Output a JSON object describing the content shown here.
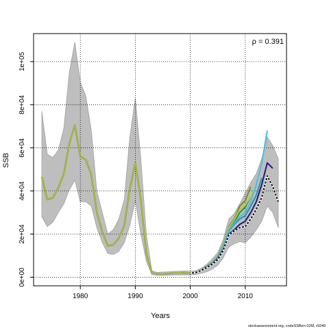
{
  "chart_data": {
    "type": "line",
    "xlabel": "Years",
    "ylabel": "SSB",
    "xlim": [
      1971.5,
      2017.5
    ],
    "ylim": [
      -4000,
      113000
    ],
    "x_ticks": [
      1980,
      1990,
      2000,
      2010
    ],
    "y_ticks": [
      0,
      20000,
      40000,
      60000,
      80000,
      100000
    ],
    "y_tick_labels": [
      "0e+00",
      "2e+04",
      "4e+04",
      "6e+04",
      "8e+04",
      "1e+05"
    ],
    "grid": true,
    "annotation": "ρ = 0.391",
    "colors": {
      "band": "#bebebe",
      "band_edge": "#a0a0a0",
      "main": "#000000",
      "peels": [
        "#1f1b7a",
        "#43bfe0",
        "#2f8fb0",
        "#b2c94a",
        "#2e8b3e",
        "#7c8f1f"
      ]
    },
    "confidence_band": {
      "x": [
        1973,
        1974,
        1975,
        1976,
        1977,
        1978,
        1979,
        1980,
        1981,
        1982,
        1983,
        1984,
        1985,
        1986,
        1987,
        1988,
        1989,
        1990,
        1991,
        1992,
        1993,
        1994,
        1995,
        1996,
        1997,
        1998,
        1999,
        2000,
        2001,
        2002,
        2003,
        2004,
        2005,
        2006,
        2007,
        2008,
        2009,
        2010,
        2011,
        2012,
        2013,
        2014,
        2015,
        2016
      ],
      "upper": [
        77000,
        57000,
        55500,
        59000,
        69000,
        95000,
        109000,
        90500,
        84000,
        68000,
        40000,
        30000,
        20000,
        22000,
        27000,
        36000,
        65000,
        83000,
        55000,
        20000,
        3000,
        2200,
        2400,
        2500,
        2700,
        2800,
        2900,
        2700,
        3000,
        4200,
        6000,
        8500,
        11500,
        17500,
        27000,
        29500,
        34000,
        39000,
        44000,
        48000,
        55000,
        65000,
        61000,
        55000
      ],
      "lower": [
        28000,
        23500,
        25500,
        30000,
        34000,
        40500,
        45000,
        35000,
        35000,
        33000,
        23000,
        16000,
        11000,
        10500,
        12000,
        16000,
        24000,
        35500,
        20000,
        7500,
        1200,
        800,
        800,
        900,
        1000,
        1000,
        1100,
        1000,
        1200,
        1800,
        2500,
        3800,
        5500,
        9000,
        14000,
        15500,
        16500,
        16000,
        18500,
        22000,
        26000,
        33000,
        30000,
        23000
      ]
    },
    "series": [
      {
        "x": [
          1973,
          1974,
          1975,
          1976,
          1977,
          1978,
          1979,
          1980,
          1981,
          1982,
          1983,
          1984,
          1985,
          1986,
          1987,
          1988,
          1989,
          1990,
          1991,
          1992,
          1993,
          1994,
          1995,
          1996,
          1997,
          1998,
          1999,
          2000,
          2001,
          2002,
          2003,
          2004,
          2005,
          2006,
          2007,
          2008,
          2009,
          2010,
          2011,
          2012,
          2013,
          2014,
          2015,
          2016
        ],
        "values": [
          46500,
          36000,
          36800,
          41500,
          48000,
          62000,
          70500,
          56000,
          54500,
          47500,
          30000,
          21000,
          14500,
          15000,
          18000,
          24000,
          41000,
          53000,
          36000,
          11000,
          2000,
          1500,
          1600,
          1700,
          1900,
          1900,
          2000,
          1800,
          2200,
          3100,
          4500,
          6000,
          8200,
          12500,
          19500,
          21500,
          23000,
          23500,
          27000,
          31500,
          37000,
          47000,
          42000,
          35000
        ]
      },
      {
        "x": [
          2000,
          2001,
          2002,
          2003,
          2004,
          2005,
          2006,
          2007,
          2008,
          2009,
          2010,
          2011,
          2012,
          2013,
          2014,
          2015
        ],
        "values": [
          1800,
          2200,
          3200,
          4700,
          6300,
          8700,
          13000,
          20000,
          22000,
          24500,
          26000,
          30000,
          35000,
          43000,
          53000,
          50500
        ]
      },
      {
        "x": [
          2000,
          2001,
          2002,
          2003,
          2004,
          2005,
          2006,
          2007,
          2008,
          2009,
          2010,
          2011,
          2012,
          2013,
          2014
        ],
        "values": [
          1800,
          2300,
          3300,
          4900,
          6600,
          9200,
          14000,
          22000,
          25000,
          28000,
          30000,
          35000,
          43000,
          53000,
          68000
        ]
      },
      {
        "x": [
          2000,
          2001,
          2002,
          2003,
          2004,
          2005,
          2006,
          2007,
          2008,
          2009,
          2010,
          2011,
          2012,
          2013
        ],
        "values": [
          1800,
          2300,
          3300,
          4900,
          6600,
          9200,
          14000,
          21500,
          24500,
          27000,
          28500,
          33000,
          38000,
          46000
        ]
      },
      {
        "x": [
          2000,
          2001,
          2002,
          2003,
          2004,
          2005,
          2006,
          2007,
          2008,
          2009,
          2010,
          2011,
          2012
        ],
        "values": [
          1800,
          2300,
          3400,
          5000,
          6900,
          9600,
          14500,
          23000,
          26500,
          31500,
          33500,
          37500,
          42500
        ]
      },
      {
        "x": [
          2000,
          2001,
          2002,
          2003,
          2004,
          2005,
          2006,
          2007,
          2008,
          2009,
          2010,
          2011
        ],
        "values": [
          1800,
          2300,
          3400,
          5000,
          6900,
          9600,
          14500,
          22500,
          25500,
          30000,
          32500,
          37500
        ]
      },
      {
        "x": [
          2000,
          2001,
          2002,
          2003,
          2004,
          2005,
          2006,
          2007,
          2008,
          2009,
          2010,
          2011
        ],
        "values": [
          1800,
          2300,
          3400,
          5100,
          7000,
          9800,
          15000,
          23500,
          27000,
          33000,
          35500,
          42000
        ]
      }
    ]
  },
  "footer": {
    "credit": "stockassessment.org, codeSSBen 02M, r9249"
  }
}
